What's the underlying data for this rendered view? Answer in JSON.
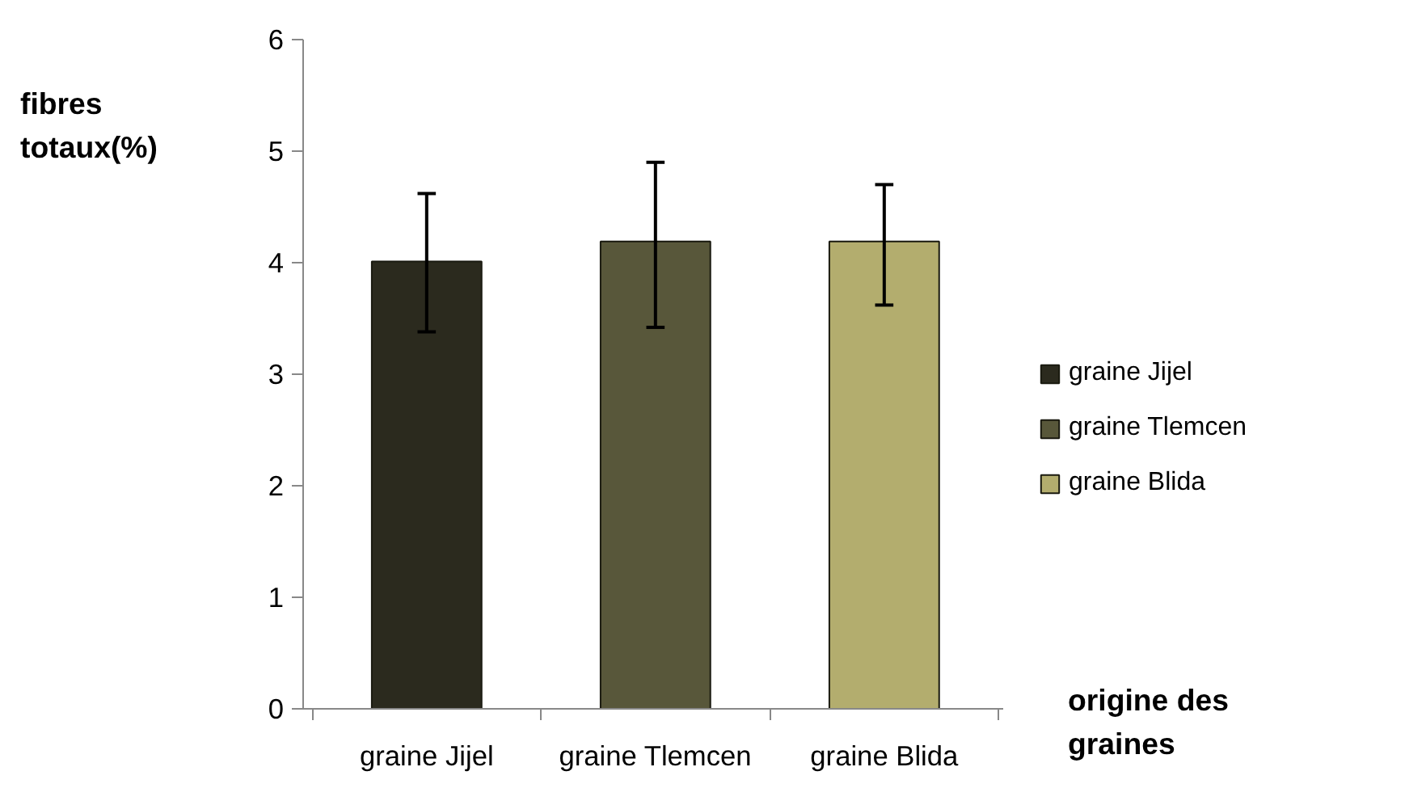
{
  "chart_data": {
    "type": "bar",
    "xlabel": "origine des graines",
    "ylabel": "fibres totaux(%)",
    "categories": [
      "graine Jijel",
      "graine Tlemcen",
      "graine Blida"
    ],
    "series": [
      {
        "name": "graine Jijel",
        "color": "#2b2a1e",
        "values": [
          4.01,
          null,
          null
        ],
        "errors": [
          [
            3.38,
            4.62
          ],
          null,
          null
        ]
      },
      {
        "name": "graine Tlemcen",
        "color": "#58573a",
        "values": [
          null,
          4.19,
          null
        ],
        "errors": [
          null,
          [
            3.42,
            4.9
          ],
          null
        ]
      },
      {
        "name": "graine Blida",
        "color": "#b3ad6e",
        "values": [
          null,
          null,
          4.19
        ],
        "errors": [
          null,
          null,
          [
            3.62,
            4.7
          ]
        ]
      }
    ],
    "ylim": [
      0,
      6
    ],
    "yticks": [
      0,
      1,
      2,
      3,
      4,
      5,
      6
    ],
    "legend": "right"
  }
}
